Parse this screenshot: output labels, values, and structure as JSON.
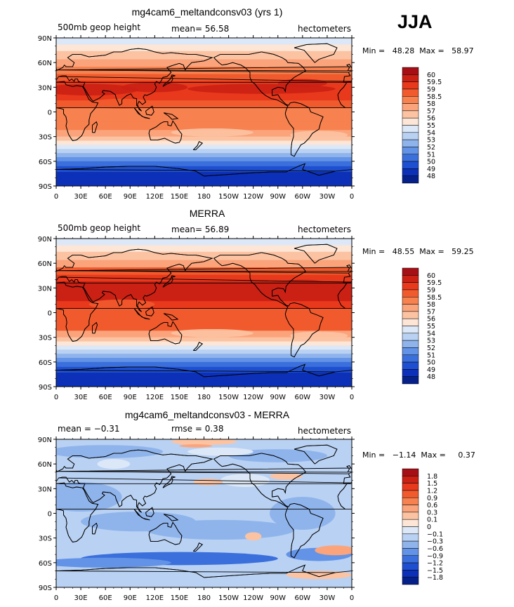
{
  "season": "JJA",
  "panels": [
    {
      "title": "mg4cam6_meltandconsv03 (yrs 1)",
      "left_label": "500mb geop height",
      "center_label": "mean=   56.58",
      "right_label": "hectometers",
      "minmax": "Min =   48.28  Max =   58.97",
      "scale": "field",
      "colorbar": {
        "labels": [
          "60",
          "59.5",
          "59",
          "58.5",
          "58",
          "57",
          "56",
          "55",
          "54",
          "53",
          "52",
          "51",
          "50",
          "49",
          "48"
        ],
        "colors": [
          "#a50f15",
          "#cb2014",
          "#e8391c",
          "#f15a2d",
          "#f7814f",
          "#fba47b",
          "#fcc3a2",
          "#fde6d6",
          "#dce8f7",
          "#b9d1f2",
          "#8fb4ec",
          "#6393e6",
          "#3a6fdc",
          "#1f4fd1",
          "#0c30b8",
          "#06208a"
        ]
      }
    },
    {
      "title": "MERRA",
      "left_label": "500mb geop height",
      "center_label": "mean=   56.89",
      "right_label": "hectometers",
      "minmax": "Min =   48.55  Max =   59.25",
      "scale": "field",
      "colorbar": {
        "labels": [
          "60",
          "59.5",
          "59",
          "58.5",
          "58",
          "57",
          "56",
          "55",
          "54",
          "53",
          "52",
          "51",
          "50",
          "49",
          "48"
        ],
        "colors": [
          "#a50f15",
          "#cb2014",
          "#e8391c",
          "#f15a2d",
          "#f7814f",
          "#fba47b",
          "#fcc3a2",
          "#fde6d6",
          "#dce8f7",
          "#b9d1f2",
          "#8fb4ec",
          "#6393e6",
          "#3a6fdc",
          "#1f4fd1",
          "#0c30b8",
          "#06208a"
        ]
      }
    },
    {
      "title": "mg4cam6_meltandconsv03 - MERRA",
      "left_label": "mean =   −0.31",
      "center_label": "rmse =     0.38",
      "right_label": "hectometers",
      "minmax": "Min =   −1.14  Max =     0.37",
      "scale": "diff",
      "colorbar": {
        "labels": [
          "1.8",
          "1.5",
          "1.2",
          "0.9",
          "0.6",
          "0.3",
          "0.1",
          "0",
          "−0.1",
          "−0.3",
          "−0.6",
          "−0.9",
          "−1.2",
          "−1.5",
          "−1.8"
        ],
        "colors": [
          "#a50f15",
          "#cb2014",
          "#e8391c",
          "#f15a2d",
          "#f7814f",
          "#fba47b",
          "#fcc3a2",
          "#fde6d6",
          "#dce8f7",
          "#b9d1f2",
          "#8fb4ec",
          "#6393e6",
          "#3a6fdc",
          "#1f4fd1",
          "#0c30b8",
          "#06208a"
        ]
      }
    }
  ],
  "axes": {
    "lat_ticks": [
      "90N",
      "60N",
      "30N",
      "0",
      "30S",
      "60S",
      "90S"
    ],
    "lon_ticks": [
      "0",
      "30E",
      "60E",
      "90E",
      "120E",
      "150E",
      "180",
      "150W",
      "120W",
      "90W",
      "60W",
      "30W",
      "0"
    ]
  }
}
